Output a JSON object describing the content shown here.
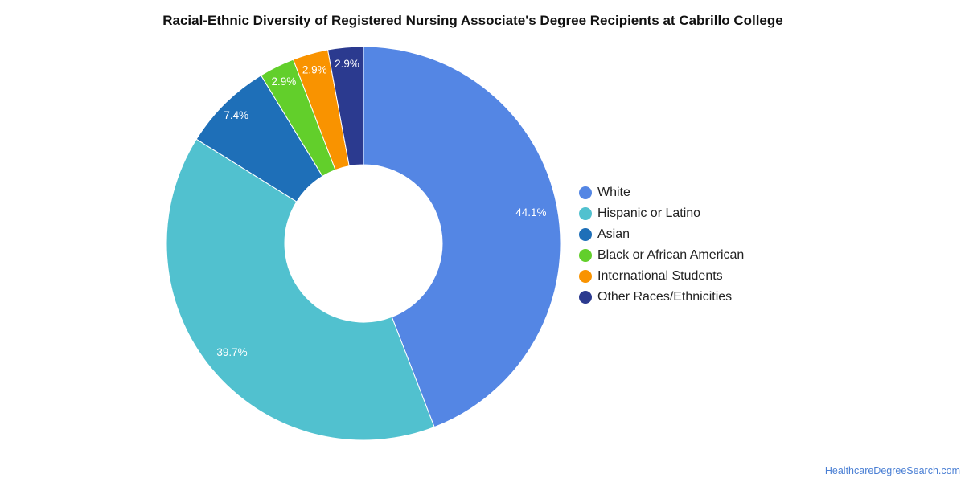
{
  "chart_data": {
    "type": "pie",
    "title": "Racial-Ethnic Diversity of Registered Nursing Associate's Degree Recipients at Cabrillo College",
    "donut": true,
    "legend_position": "right",
    "slices": [
      {
        "label": "White",
        "value": 44.1,
        "display": "44.1%",
        "color": "#5486e4"
      },
      {
        "label": "Hispanic or Latino",
        "value": 39.7,
        "display": "39.7%",
        "color": "#51c1cf"
      },
      {
        "label": "Asian",
        "value": 7.4,
        "display": "7.4%",
        "color": "#1e6fb8"
      },
      {
        "label": "Black or African American",
        "value": 2.9,
        "display": "2.9%",
        "color": "#62cf2b"
      },
      {
        "label": "International Students",
        "value": 2.9,
        "display": "2.9%",
        "color": "#f99300"
      },
      {
        "label": "Other Races/Ethnicities",
        "value": 2.9,
        "display": "2.9%",
        "color": "#2b3a8f"
      }
    ]
  },
  "footer": {
    "source": "HealthcareDegreeSearch.com"
  }
}
